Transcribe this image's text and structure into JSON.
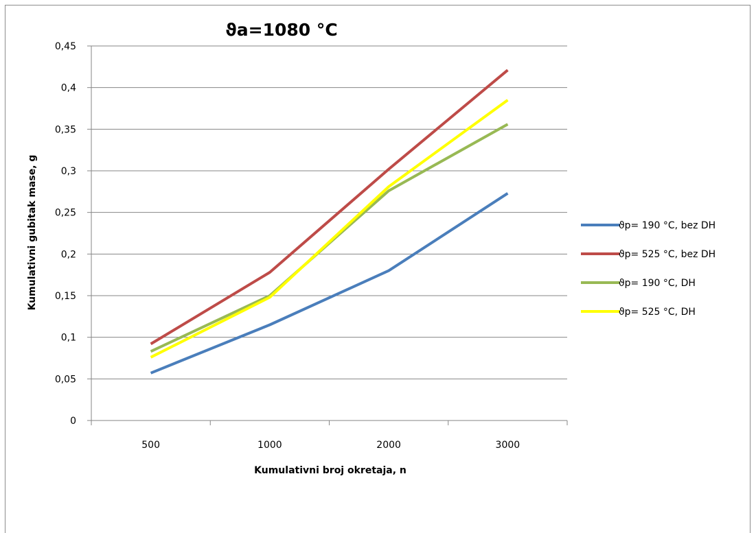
{
  "chart_data": {
    "type": "line",
    "title": "ϑa=1080 °C",
    "xlabel": "Kumulativni broj okretaja, n",
    "ylabel": "Kumulativni gubitak mase, g",
    "categories": [
      "500",
      "1000",
      "2000",
      "3000"
    ],
    "yticks": [
      "0",
      "0,05",
      "0,1",
      "0,15",
      "0,2",
      "0,25",
      "0,3",
      "0,35",
      "0,4",
      "0,45"
    ],
    "ylim": [
      0,
      0.45
    ],
    "grid": "horizontal",
    "legend_position": "right",
    "series": [
      {
        "name": "ϑp= 190 °C, bez DH",
        "color": "#4a7ebb",
        "values": [
          0.057,
          0.115,
          0.18,
          0.273
        ]
      },
      {
        "name": "ϑp= 525 °C, bez DH",
        "color": "#be4b48",
        "values": [
          0.092,
          0.178,
          0.302,
          0.421
        ]
      },
      {
        "name": "ϑp= 190 °C, DH",
        "color": "#98b954",
        "values": [
          0.083,
          0.15,
          0.276,
          0.356
        ]
      },
      {
        "name": "ϑp= 525 °C, DH",
        "color": "#ffff00",
        "values": [
          0.076,
          0.148,
          0.281,
          0.385
        ]
      }
    ]
  }
}
